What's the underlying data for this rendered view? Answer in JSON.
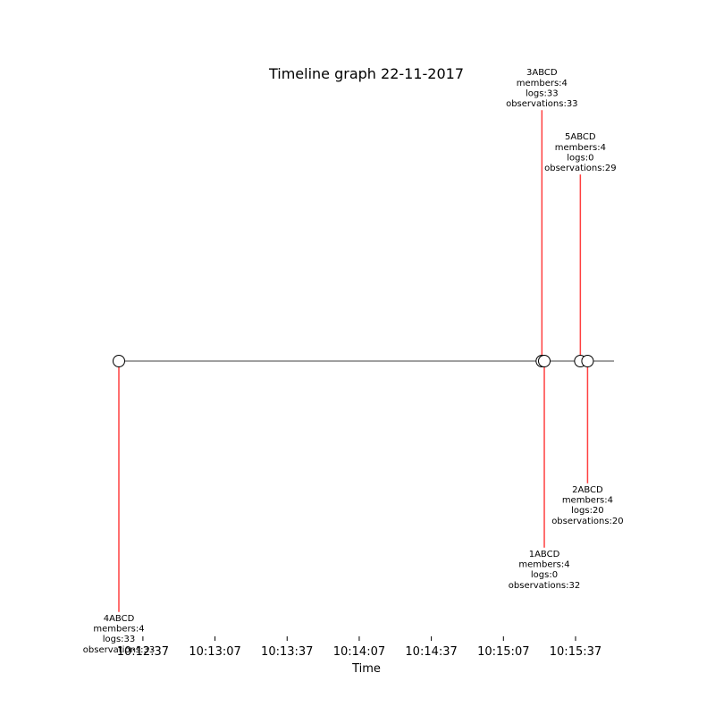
{
  "chart_data": {
    "type": "scatter",
    "title": "Timeline graph 22-11-2017",
    "xlabel": "Time",
    "ylabel": "",
    "x_ticks": [
      "10:12:37",
      "10:13:07",
      "10:13:37",
      "10:14:07",
      "10:14:37",
      "10:15:07",
      "10:15:37"
    ],
    "xlim": [
      "10:12:27",
      "10:15:53"
    ],
    "grid": false,
    "legend": "none",
    "colors": {
      "baseline": "#808080",
      "stem": "#ff4040",
      "marker_fill": "#ffffff",
      "marker_edge": "#000000"
    },
    "events": [
      {
        "time": "10:12:27",
        "level": -0.78,
        "label": [
          "4ABCD",
          "members:4",
          "logs:33",
          "observations:33"
        ]
      },
      {
        "time": "10:15:23",
        "level": 0.78,
        "label": [
          "3ABCD",
          "members:4",
          "logs:33",
          "observations:33"
        ]
      },
      {
        "time": "10:15:24",
        "level": -0.58,
        "label": [
          "1ABCD",
          "members:4",
          "logs:0",
          "observations:32"
        ]
      },
      {
        "time": "10:15:39",
        "level": 0.58,
        "label": [
          "5ABCD",
          "members:4",
          "logs:0",
          "observations:29"
        ]
      },
      {
        "time": "10:15:42",
        "level": -0.38,
        "label": [
          "2ABCD",
          "members:4",
          "logs:20",
          "observations:20"
        ]
      }
    ]
  }
}
